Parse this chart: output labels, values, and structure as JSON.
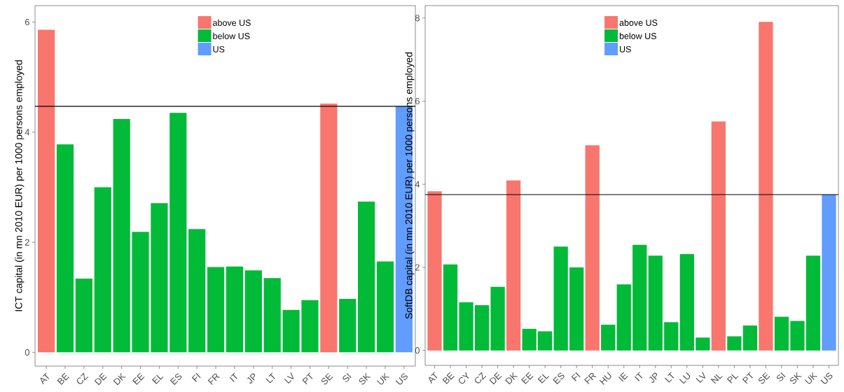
{
  "chart_data": [
    {
      "type": "bar",
      "ylabel": "ICT capital (in mn 2010 EUR) per 1000 persons employed",
      "categories": [
        "AT",
        "BE",
        "CZ",
        "DE",
        "DK",
        "EE",
        "EL",
        "ES",
        "FI",
        "FR",
        "IT",
        "JP",
        "LT",
        "LV",
        "PT",
        "SE",
        "SI",
        "SK",
        "UK",
        "US"
      ],
      "series": [
        {
          "name": "above US",
          "color": "#f8766d",
          "values": [
            5.86,
            null,
            null,
            null,
            null,
            null,
            null,
            null,
            null,
            null,
            null,
            null,
            null,
            null,
            null,
            4.52,
            null,
            null,
            null,
            null
          ]
        },
        {
          "name": "below US",
          "color": "#00ba38",
          "values": [
            null,
            3.78,
            1.34,
            3.0,
            4.24,
            2.19,
            2.71,
            4.35,
            2.24,
            1.55,
            1.56,
            1.49,
            1.35,
            0.77,
            0.95,
            null,
            0.97,
            2.74,
            1.65,
            null
          ]
        },
        {
          "name": "US",
          "color": "#619cff",
          "values": [
            null,
            null,
            null,
            null,
            null,
            null,
            null,
            null,
            null,
            null,
            null,
            null,
            null,
            null,
            null,
            null,
            null,
            null,
            null,
            4.47
          ]
        }
      ],
      "ylim": [
        -0.25,
        6.3
      ],
      "yticks": [
        0,
        2,
        4,
        6
      ],
      "legend": "top",
      "ref_lines": [
        {
          "axis": "y",
          "value": 4.47,
          "color": "#000000"
        }
      ]
    },
    {
      "type": "bar",
      "ylabel": "SoftDB capital (in mn 2010 EUR) per 1000 persons employed",
      "categories": [
        "AT",
        "BE",
        "CY",
        "CZ",
        "DE",
        "DK",
        "EE",
        "EL",
        "ES",
        "FI",
        "FR",
        "HU",
        "IE",
        "IT",
        "JP",
        "LT",
        "LU",
        "LV",
        "NL",
        "PL",
        "PT",
        "SE",
        "SI",
        "SK",
        "UK",
        "US"
      ],
      "series": [
        {
          "name": "above US",
          "color": "#f8766d",
          "values": [
            3.83,
            null,
            null,
            null,
            null,
            4.09,
            null,
            null,
            null,
            null,
            4.94,
            null,
            null,
            null,
            null,
            null,
            null,
            null,
            5.51,
            null,
            null,
            7.91,
            null,
            null,
            null,
            null
          ]
        },
        {
          "name": "below US",
          "color": "#00ba38",
          "values": [
            null,
            2.07,
            1.16,
            1.09,
            1.53,
            null,
            0.52,
            0.46,
            2.5,
            2.0,
            null,
            0.62,
            1.59,
            2.54,
            2.28,
            0.68,
            2.32,
            0.31,
            null,
            0.34,
            0.6,
            null,
            0.81,
            0.71,
            2.28,
            null
          ]
        },
        {
          "name": "US",
          "color": "#619cff",
          "values": [
            null,
            null,
            null,
            null,
            null,
            null,
            null,
            null,
            null,
            null,
            null,
            null,
            null,
            null,
            null,
            null,
            null,
            null,
            null,
            null,
            null,
            null,
            null,
            null,
            null,
            3.75
          ]
        }
      ],
      "ylim": [
        -0.36,
        8.3
      ],
      "yticks": [
        0,
        2,
        4,
        6,
        8
      ],
      "legend": "top",
      "ref_lines": [
        {
          "axis": "y",
          "value": 3.75,
          "color": "#000000"
        }
      ]
    }
  ]
}
